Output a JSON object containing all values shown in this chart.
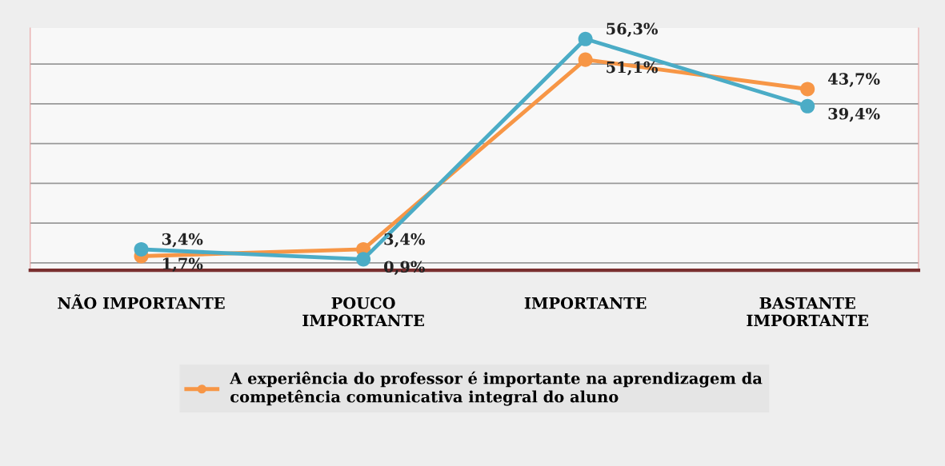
{
  "chart_data": {
    "type": "line",
    "categories": [
      "NÃO IMPORTANTE",
      "POUCO\nIMPORTANTE",
      "IMPORTANTE",
      "BASTANTE\nIMPORTANTE"
    ],
    "series": [
      {
        "name": "A experiência do professor é importante na aprendizagem da competência comunicativa integral do aluno",
        "color": "#f79646",
        "values": [
          1.7,
          3.4,
          51.1,
          43.7
        ],
        "value_labels": [
          "1,7%",
          "3,4%",
          "51,1%",
          "43,7%"
        ]
      },
      {
        "color": "#4bacc6",
        "values": [
          3.4,
          0.9,
          56.3,
          39.4
        ],
        "value_labels": [
          "3,4%",
          "0,9%",
          "56,3%",
          "39,4%"
        ]
      }
    ],
    "tick_labels": "x",
    "grid": "y",
    "legend": "bottom",
    "marker": "circle",
    "line_style": "solid"
  }
}
